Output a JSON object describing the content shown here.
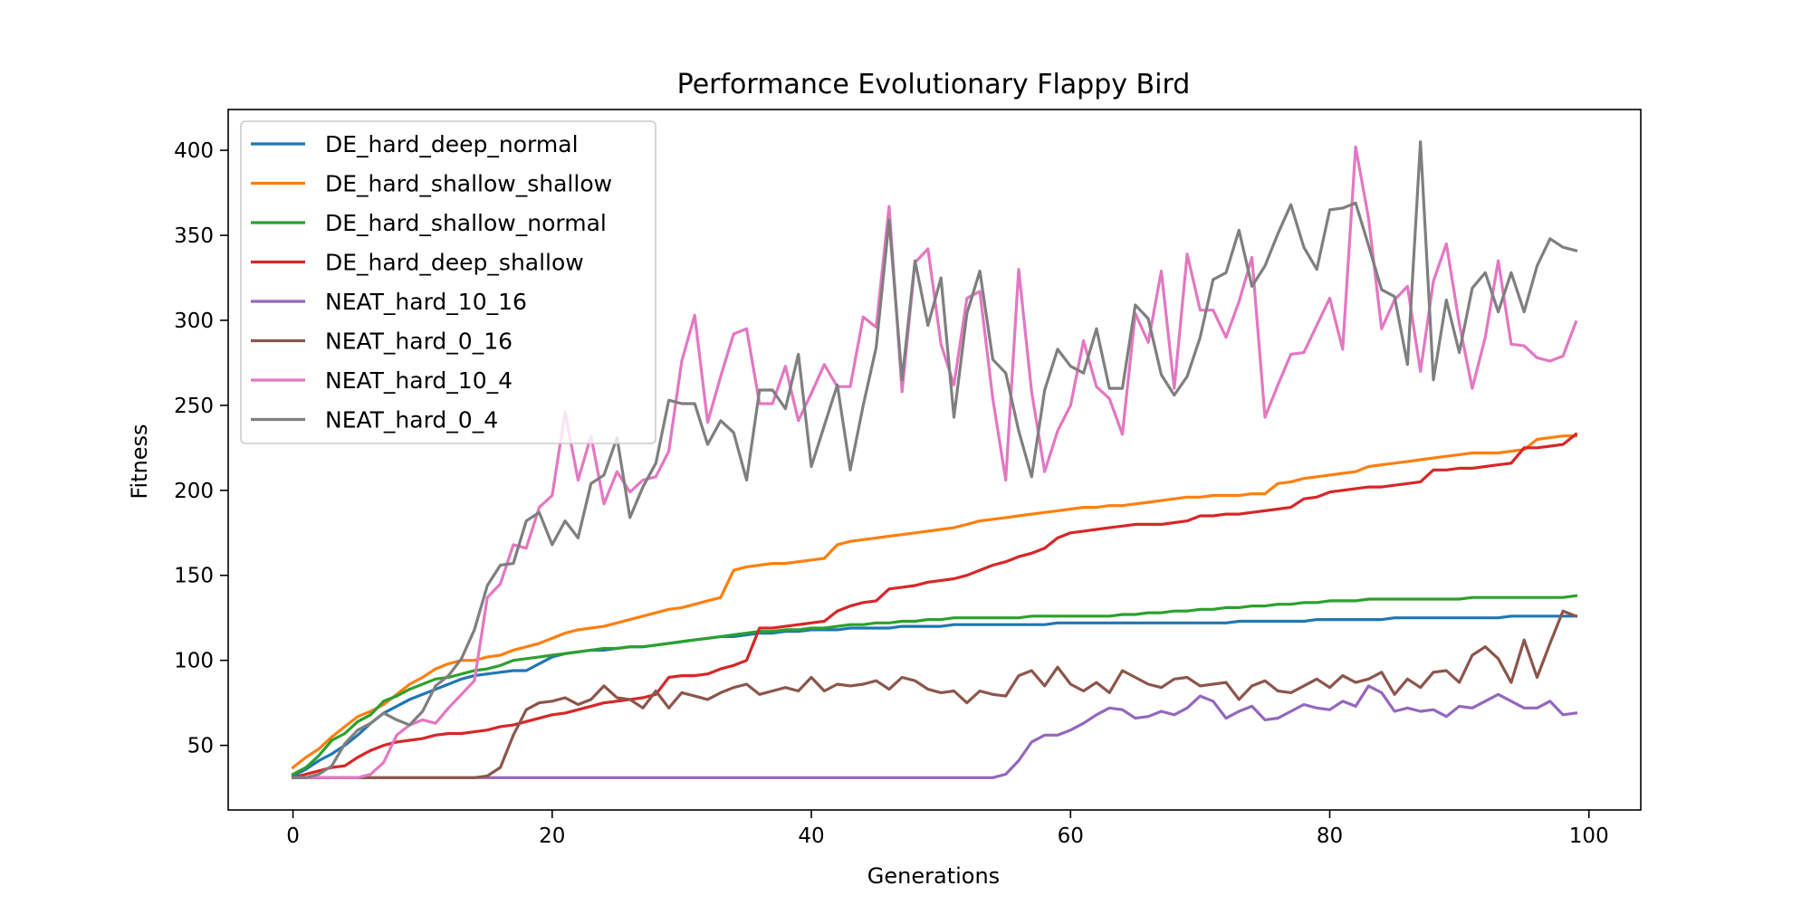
{
  "chart_data": {
    "type": "line",
    "title": "Performance Evolutionary Flappy Bird",
    "xlabel": "Generations",
    "ylabel": "Fitness",
    "xlim": [
      -5,
      104
    ],
    "ylim": [
      12,
      424
    ],
    "xticks": [
      0,
      20,
      40,
      60,
      80,
      100
    ],
    "yticks": [
      50,
      100,
      150,
      200,
      250,
      300,
      350,
      400
    ],
    "legend_position": "upper-left",
    "x": [
      0,
      1,
      2,
      3,
      4,
      5,
      6,
      7,
      8,
      9,
      10,
      11,
      12,
      13,
      14,
      15,
      16,
      17,
      18,
      19,
      20,
      21,
      22,
      23,
      24,
      25,
      26,
      27,
      28,
      29,
      30,
      31,
      32,
      33,
      34,
      35,
      36,
      37,
      38,
      39,
      40,
      41,
      42,
      43,
      44,
      45,
      46,
      47,
      48,
      49,
      50,
      51,
      52,
      53,
      54,
      55,
      56,
      57,
      58,
      59,
      60,
      61,
      62,
      63,
      64,
      65,
      66,
      67,
      68,
      69,
      70,
      71,
      72,
      73,
      74,
      75,
      76,
      77,
      78,
      79,
      80,
      81,
      82,
      83,
      84,
      85,
      86,
      87,
      88,
      89,
      90,
      91,
      92,
      93,
      94,
      95,
      96,
      97,
      98,
      99
    ],
    "series": [
      {
        "name": "DE_hard_deep_normal",
        "color": "#1f77b4",
        "values": [
          32,
          36,
          41,
          45,
          50,
          56,
          63,
          69,
          73,
          77,
          80,
          83,
          86,
          89,
          91,
          92,
          93,
          94,
          94,
          98,
          102,
          104,
          105,
          106,
          106,
          107,
          108,
          108,
          109,
          110,
          111,
          112,
          113,
          114,
          114,
          115,
          116,
          116,
          117,
          117,
          118,
          118,
          118,
          119,
          119,
          119,
          119,
          120,
          120,
          120,
          120,
          121,
          121,
          121,
          121,
          121,
          121,
          121,
          121,
          122,
          122,
          122,
          122,
          122,
          122,
          122,
          122,
          122,
          122,
          122,
          122,
          122,
          122,
          123,
          123,
          123,
          123,
          123,
          123,
          124,
          124,
          124,
          124,
          124,
          124,
          125,
          125,
          125,
          125,
          125,
          125,
          125,
          125,
          125,
          126,
          126,
          126,
          126,
          126,
          126
        ]
      },
      {
        "name": "DE_hard_shallow_shallow",
        "color": "#ff7f0e",
        "values": [
          37,
          43,
          48,
          55,
          61,
          67,
          70,
          74,
          80,
          86,
          90,
          95,
          98,
          100,
          100,
          102,
          103,
          106,
          108,
          110,
          113,
          116,
          118,
          119,
          120,
          122,
          124,
          126,
          128,
          130,
          131,
          133,
          135,
          137,
          153,
          155,
          156,
          157,
          157,
          158,
          159,
          160,
          168,
          170,
          171,
          172,
          173,
          174,
          175,
          176,
          177,
          178,
          180,
          182,
          183,
          184,
          185,
          186,
          187,
          188,
          189,
          190,
          190,
          191,
          191,
          192,
          193,
          194,
          195,
          196,
          196,
          197,
          197,
          197,
          198,
          198,
          204,
          205,
          207,
          208,
          209,
          210,
          211,
          214,
          215,
          216,
          217,
          218,
          219,
          220,
          221,
          222,
          222,
          222,
          223,
          224,
          230,
          231,
          232,
          232
        ]
      },
      {
        "name": "DE_hard_shallow_normal",
        "color": "#2ca02c",
        "values": [
          33,
          37,
          44,
          53,
          57,
          64,
          68,
          76,
          79,
          83,
          86,
          89,
          90,
          92,
          94,
          95,
          97,
          100,
          101,
          102,
          103,
          104,
          105,
          106,
          107,
          107,
          108,
          108,
          109,
          110,
          111,
          112,
          113,
          114,
          115,
          116,
          117,
          117,
          118,
          118,
          119,
          119,
          120,
          121,
          121,
          122,
          122,
          123,
          123,
          124,
          124,
          125,
          125,
          125,
          125,
          125,
          125,
          126,
          126,
          126,
          126,
          126,
          126,
          126,
          127,
          127,
          128,
          128,
          129,
          129,
          130,
          130,
          131,
          131,
          132,
          132,
          133,
          133,
          134,
          134,
          135,
          135,
          135,
          136,
          136,
          136,
          136,
          136,
          136,
          136,
          136,
          137,
          137,
          137,
          137,
          137,
          137,
          137,
          137,
          138
        ]
      },
      {
        "name": "DE_hard_deep_shallow",
        "color": "#d62728",
        "values": [
          31,
          33,
          35,
          37,
          38,
          43,
          47,
          50,
          52,
          53,
          54,
          56,
          57,
          57,
          58,
          59,
          61,
          62,
          64,
          66,
          68,
          69,
          71,
          73,
          75,
          76,
          77,
          78,
          80,
          90,
          91,
          91,
          92,
          95,
          97,
          100,
          119,
          119,
          120,
          121,
          122,
          123,
          129,
          132,
          134,
          135,
          142,
          143,
          144,
          146,
          147,
          148,
          150,
          153,
          156,
          158,
          161,
          163,
          166,
          172,
          175,
          176,
          177,
          178,
          179,
          180,
          180,
          180,
          181,
          182,
          185,
          185,
          186,
          186,
          187,
          188,
          189,
          190,
          195,
          196,
          199,
          200,
          201,
          202,
          202,
          203,
          204,
          205,
          212,
          212,
          213,
          213,
          214,
          215,
          216,
          225,
          225,
          226,
          227,
          233
        ]
      },
      {
        "name": "NEAT_hard_10_16",
        "color": "#9467bd",
        "values": [
          31,
          31,
          31,
          31,
          31,
          31,
          31,
          31,
          31,
          31,
          31,
          31,
          31,
          31,
          31,
          31,
          31,
          31,
          31,
          31,
          31,
          31,
          31,
          31,
          31,
          31,
          31,
          31,
          31,
          31,
          31,
          31,
          31,
          31,
          31,
          31,
          31,
          31,
          31,
          31,
          31,
          31,
          31,
          31,
          31,
          31,
          31,
          31,
          31,
          31,
          31,
          31,
          31,
          31,
          31,
          33,
          41,
          52,
          56,
          56,
          59,
          63,
          68,
          72,
          71,
          66,
          67,
          70,
          68,
          72,
          79,
          76,
          66,
          70,
          73,
          65,
          66,
          70,
          74,
          72,
          71,
          76,
          73,
          85,
          81,
          70,
          72,
          70,
          71,
          67,
          73,
          72,
          76,
          80,
          76,
          72,
          72,
          76,
          68,
          69
        ]
      },
      {
        "name": "NEAT_hard_0_16",
        "color": "#8c564b",
        "values": [
          31,
          31,
          31,
          31,
          31,
          31,
          31,
          31,
          31,
          31,
          31,
          31,
          31,
          31,
          31,
          32,
          37,
          56,
          71,
          75,
          76,
          78,
          74,
          77,
          85,
          78,
          77,
          72,
          82,
          72,
          81,
          79,
          77,
          81,
          84,
          86,
          80,
          82,
          84,
          82,
          90,
          82,
          86,
          85,
          86,
          88,
          83,
          90,
          88,
          83,
          81,
          82,
          75,
          82,
          80,
          79,
          91,
          94,
          85,
          96,
          86,
          82,
          87,
          81,
          94,
          90,
          86,
          84,
          89,
          90,
          85,
          86,
          87,
          77,
          85,
          88,
          82,
          81,
          85,
          89,
          84,
          91,
          87,
          89,
          93,
          80,
          89,
          84,
          93,
          94,
          87,
          103,
          108,
          101,
          87,
          112,
          90,
          110,
          129,
          126
        ]
      },
      {
        "name": "NEAT_hard_10_4",
        "color": "#e377c2",
        "values": [
          31,
          31,
          31,
          31,
          31,
          31,
          33,
          40,
          56,
          62,
          65,
          63,
          72,
          80,
          88,
          137,
          145,
          168,
          166,
          190,
          197,
          246,
          206,
          232,
          192,
          211,
          199,
          206,
          208,
          223,
          276,
          303,
          240,
          267,
          292,
          295,
          251,
          251,
          273,
          241,
          257,
          274,
          261,
          261,
          302,
          296,
          367,
          258,
          334,
          342,
          286,
          262,
          313,
          317,
          254,
          206,
          330,
          258,
          211,
          235,
          250,
          288,
          261,
          254,
          233,
          304,
          287,
          329,
          260,
          339,
          306,
          306,
          290,
          311,
          337,
          243,
          262,
          280,
          281,
          297,
          313,
          283,
          402,
          360,
          295,
          312,
          320,
          270,
          323,
          345,
          298,
          260,
          290,
          335,
          286,
          285,
          278,
          276,
          279,
          299
        ]
      },
      {
        "name": "NEAT_hard_0_4",
        "color": "#7f7f7f",
        "values": [
          31,
          31,
          33,
          38,
          51,
          59,
          63,
          69,
          65,
          62,
          70,
          85,
          91,
          101,
          118,
          144,
          156,
          157,
          182,
          187,
          168,
          182,
          172,
          204,
          209,
          231,
          184,
          202,
          216,
          253,
          251,
          251,
          227,
          241,
          234,
          206,
          259,
          259,
          248,
          280,
          214,
          238,
          262,
          212,
          250,
          284,
          359,
          265,
          335,
          297,
          325,
          243,
          304,
          329,
          277,
          269,
          235,
          208,
          259,
          283,
          273,
          269,
          295,
          260,
          260,
          309,
          301,
          268,
          256,
          267,
          290,
          324,
          328,
          353,
          320,
          332,
          351,
          368,
          343,
          330,
          365,
          366,
          369,
          344,
          318,
          314,
          274,
          405,
          265,
          312,
          281,
          319,
          328,
          305,
          328,
          305,
          332,
          348,
          343,
          341
        ]
      }
    ]
  }
}
